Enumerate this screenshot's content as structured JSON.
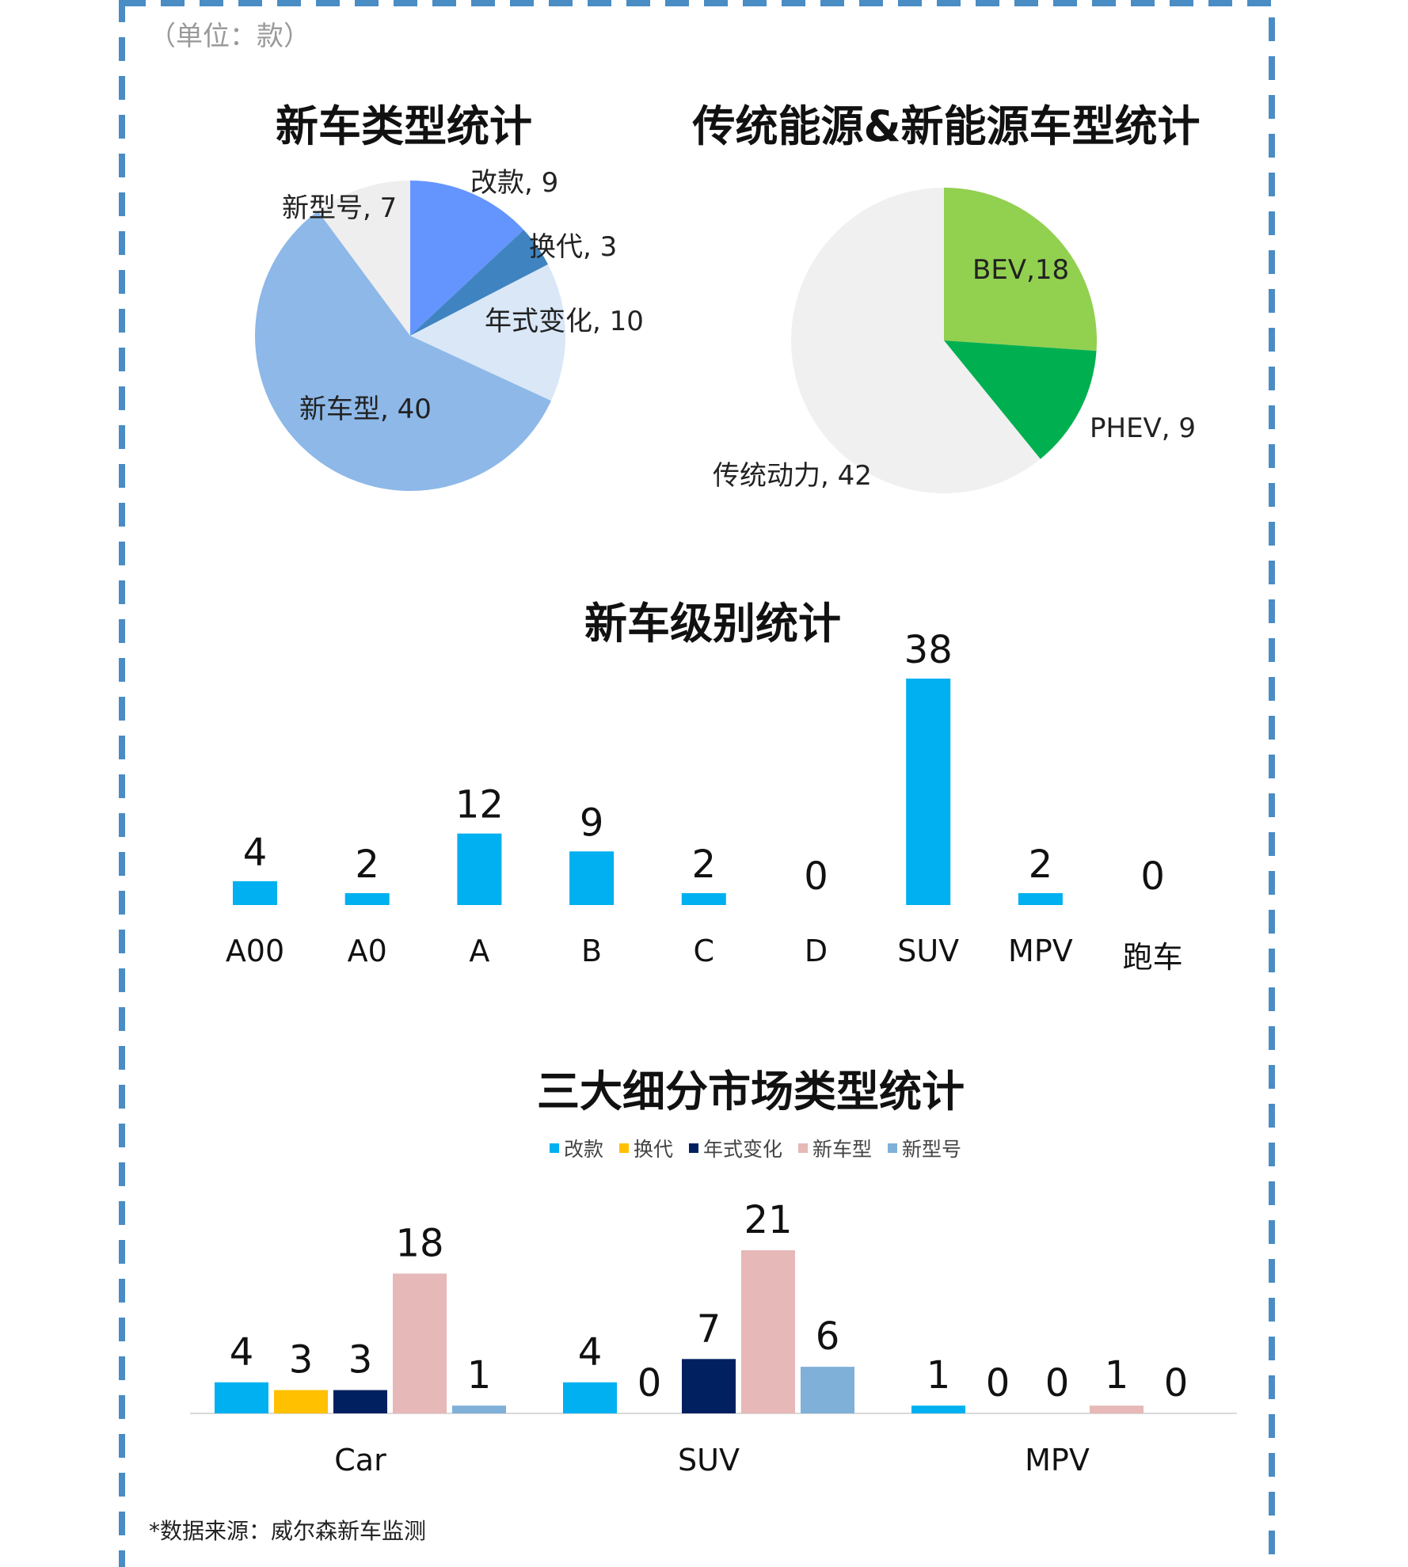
{
  "unit_note": "（单位：款）",
  "source_note": "*数据来源：威尔森新车监测",
  "colors": {
    "frame_dash": "#4a8cc4",
    "bar_blue": "#00b0f0",
    "axis": "#d9d9d9"
  },
  "chart_data": [
    {
      "type": "pie",
      "title": "新车类型统计",
      "slices": [
        {
          "label": "改款",
          "value": 9,
          "color": "#6495ff"
        },
        {
          "label": "换代",
          "value": 3,
          "color": "#3f84c1"
        },
        {
          "label": "年式变化",
          "value": 10,
          "color": "#d9e7f7"
        },
        {
          "label": "新车型",
          "value": 40,
          "color": "#8db8e8"
        },
        {
          "label": "新型号",
          "value": 7,
          "color": "#eeeeee"
        }
      ],
      "data_labels": [
        "改款, 9",
        "换代, 3",
        "年式变化, 10",
        "新车型, 40",
        "新型号, 7"
      ]
    },
    {
      "type": "pie",
      "title": "传统能源&新能源车型统计",
      "slices": [
        {
          "label": "BEV",
          "value": 18,
          "color": "#92d050"
        },
        {
          "label": "PHEV",
          "value": 9,
          "color": "#00b050"
        },
        {
          "label": "传统动力",
          "value": 42,
          "color": "#f0f0f0"
        }
      ],
      "data_labels": [
        "BEV,18",
        "PHEV, 9",
        "传统动力, 42"
      ]
    },
    {
      "type": "bar",
      "title": "新车级别统计",
      "categories": [
        "A00",
        "A0",
        "A",
        "B",
        "C",
        "D",
        "SUV",
        "MPV",
        "跑车"
      ],
      "values": [
        4,
        2,
        12,
        9,
        2,
        0,
        38,
        2,
        0
      ],
      "color": "#00b0f0"
    },
    {
      "type": "bar",
      "title": "三大细分市场类型统计",
      "categories": [
        "Car",
        "SUV",
        "MPV"
      ],
      "legend_position": "top",
      "series": [
        {
          "name": "改款",
          "values": [
            4,
            4,
            1
          ],
          "color": "#00b0f0"
        },
        {
          "name": "换代",
          "values": [
            3,
            0,
            0
          ],
          "color": "#ffc000"
        },
        {
          "name": "年式变化",
          "values": [
            3,
            7,
            0
          ],
          "color": "#002060"
        },
        {
          "name": "新车型",
          "values": [
            18,
            21,
            1
          ],
          "color": "#e6b8b7"
        },
        {
          "name": "新型号",
          "values": [
            1,
            6,
            0
          ],
          "color": "#7fb0d8"
        }
      ]
    }
  ]
}
